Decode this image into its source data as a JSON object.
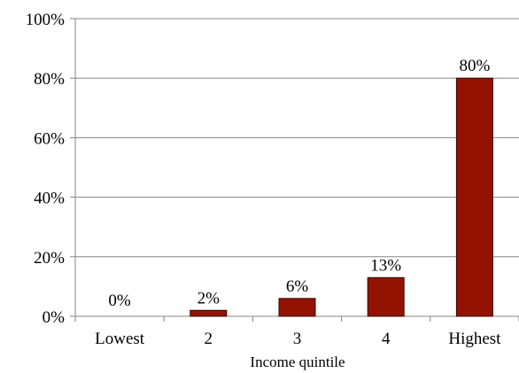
{
  "chart_data": {
    "type": "bar",
    "categories": [
      "Lowest",
      "2",
      "3",
      "4",
      "Highest"
    ],
    "values": [
      0,
      2,
      6,
      13,
      80
    ],
    "data_labels": [
      "0%",
      "2%",
      "6%",
      "13%",
      "80%"
    ],
    "title": "",
    "xlabel": "Income quintile",
    "ylabel": "",
    "ylim": [
      0,
      100
    ],
    "y_ticks": [
      0,
      20,
      40,
      60,
      80,
      100
    ],
    "y_tick_labels": [
      "0%",
      "20%",
      "40%",
      "60%",
      "80%",
      "100%"
    ],
    "grid": true,
    "legend": "none",
    "colors": {
      "bar_fill": "#931300",
      "bar_stroke": "#3a0800",
      "grid": "#868686",
      "axis": "#868686"
    }
  }
}
